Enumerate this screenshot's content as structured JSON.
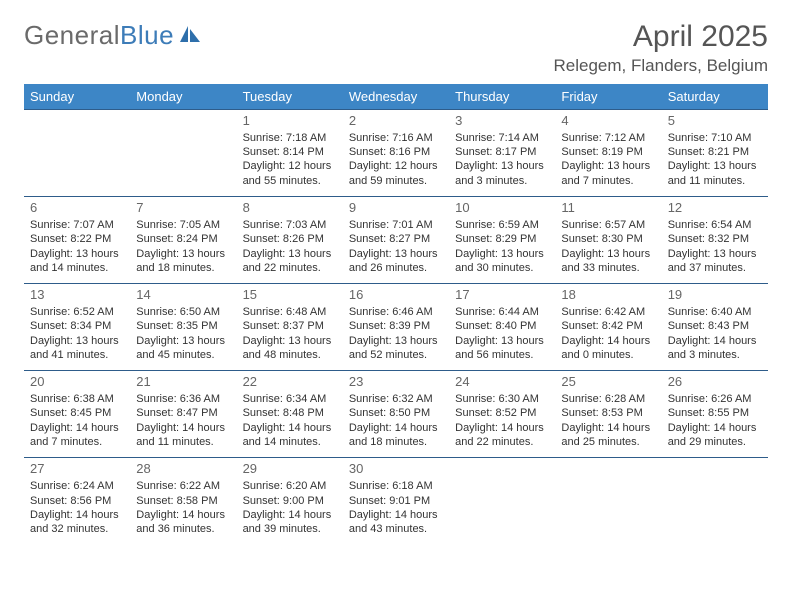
{
  "brand": {
    "part1": "General",
    "part2": "Blue"
  },
  "title": "April 2025",
  "location": "Relegem, Flanders, Belgium",
  "colors": {
    "header_bg": "#3d86c6",
    "header_text": "#ffffff",
    "row_border": "#2e5c8a",
    "text": "#333333",
    "title_text": "#555555",
    "logo_gray": "#6a6a6a",
    "logo_blue": "#3d7cb8",
    "background": "#ffffff"
  },
  "weekdays": [
    "Sunday",
    "Monday",
    "Tuesday",
    "Wednesday",
    "Thursday",
    "Friday",
    "Saturday"
  ],
  "weeks": [
    [
      null,
      null,
      {
        "n": "1",
        "sr": "Sunrise: 7:18 AM",
        "ss": "Sunset: 8:14 PM",
        "d1": "Daylight: 12 hours",
        "d2": "and 55 minutes."
      },
      {
        "n": "2",
        "sr": "Sunrise: 7:16 AM",
        "ss": "Sunset: 8:16 PM",
        "d1": "Daylight: 12 hours",
        "d2": "and 59 minutes."
      },
      {
        "n": "3",
        "sr": "Sunrise: 7:14 AM",
        "ss": "Sunset: 8:17 PM",
        "d1": "Daylight: 13 hours",
        "d2": "and 3 minutes."
      },
      {
        "n": "4",
        "sr": "Sunrise: 7:12 AM",
        "ss": "Sunset: 8:19 PM",
        "d1": "Daylight: 13 hours",
        "d2": "and 7 minutes."
      },
      {
        "n": "5",
        "sr": "Sunrise: 7:10 AM",
        "ss": "Sunset: 8:21 PM",
        "d1": "Daylight: 13 hours",
        "d2": "and 11 minutes."
      }
    ],
    [
      {
        "n": "6",
        "sr": "Sunrise: 7:07 AM",
        "ss": "Sunset: 8:22 PM",
        "d1": "Daylight: 13 hours",
        "d2": "and 14 minutes."
      },
      {
        "n": "7",
        "sr": "Sunrise: 7:05 AM",
        "ss": "Sunset: 8:24 PM",
        "d1": "Daylight: 13 hours",
        "d2": "and 18 minutes."
      },
      {
        "n": "8",
        "sr": "Sunrise: 7:03 AM",
        "ss": "Sunset: 8:26 PM",
        "d1": "Daylight: 13 hours",
        "d2": "and 22 minutes."
      },
      {
        "n": "9",
        "sr": "Sunrise: 7:01 AM",
        "ss": "Sunset: 8:27 PM",
        "d1": "Daylight: 13 hours",
        "d2": "and 26 minutes."
      },
      {
        "n": "10",
        "sr": "Sunrise: 6:59 AM",
        "ss": "Sunset: 8:29 PM",
        "d1": "Daylight: 13 hours",
        "d2": "and 30 minutes."
      },
      {
        "n": "11",
        "sr": "Sunrise: 6:57 AM",
        "ss": "Sunset: 8:30 PM",
        "d1": "Daylight: 13 hours",
        "d2": "and 33 minutes."
      },
      {
        "n": "12",
        "sr": "Sunrise: 6:54 AM",
        "ss": "Sunset: 8:32 PM",
        "d1": "Daylight: 13 hours",
        "d2": "and 37 minutes."
      }
    ],
    [
      {
        "n": "13",
        "sr": "Sunrise: 6:52 AM",
        "ss": "Sunset: 8:34 PM",
        "d1": "Daylight: 13 hours",
        "d2": "and 41 minutes."
      },
      {
        "n": "14",
        "sr": "Sunrise: 6:50 AM",
        "ss": "Sunset: 8:35 PM",
        "d1": "Daylight: 13 hours",
        "d2": "and 45 minutes."
      },
      {
        "n": "15",
        "sr": "Sunrise: 6:48 AM",
        "ss": "Sunset: 8:37 PM",
        "d1": "Daylight: 13 hours",
        "d2": "and 48 minutes."
      },
      {
        "n": "16",
        "sr": "Sunrise: 6:46 AM",
        "ss": "Sunset: 8:39 PM",
        "d1": "Daylight: 13 hours",
        "d2": "and 52 minutes."
      },
      {
        "n": "17",
        "sr": "Sunrise: 6:44 AM",
        "ss": "Sunset: 8:40 PM",
        "d1": "Daylight: 13 hours",
        "d2": "and 56 minutes."
      },
      {
        "n": "18",
        "sr": "Sunrise: 6:42 AM",
        "ss": "Sunset: 8:42 PM",
        "d1": "Daylight: 14 hours",
        "d2": "and 0 minutes."
      },
      {
        "n": "19",
        "sr": "Sunrise: 6:40 AM",
        "ss": "Sunset: 8:43 PM",
        "d1": "Daylight: 14 hours",
        "d2": "and 3 minutes."
      }
    ],
    [
      {
        "n": "20",
        "sr": "Sunrise: 6:38 AM",
        "ss": "Sunset: 8:45 PM",
        "d1": "Daylight: 14 hours",
        "d2": "and 7 minutes."
      },
      {
        "n": "21",
        "sr": "Sunrise: 6:36 AM",
        "ss": "Sunset: 8:47 PM",
        "d1": "Daylight: 14 hours",
        "d2": "and 11 minutes."
      },
      {
        "n": "22",
        "sr": "Sunrise: 6:34 AM",
        "ss": "Sunset: 8:48 PM",
        "d1": "Daylight: 14 hours",
        "d2": "and 14 minutes."
      },
      {
        "n": "23",
        "sr": "Sunrise: 6:32 AM",
        "ss": "Sunset: 8:50 PM",
        "d1": "Daylight: 14 hours",
        "d2": "and 18 minutes."
      },
      {
        "n": "24",
        "sr": "Sunrise: 6:30 AM",
        "ss": "Sunset: 8:52 PM",
        "d1": "Daylight: 14 hours",
        "d2": "and 22 minutes."
      },
      {
        "n": "25",
        "sr": "Sunrise: 6:28 AM",
        "ss": "Sunset: 8:53 PM",
        "d1": "Daylight: 14 hours",
        "d2": "and 25 minutes."
      },
      {
        "n": "26",
        "sr": "Sunrise: 6:26 AM",
        "ss": "Sunset: 8:55 PM",
        "d1": "Daylight: 14 hours",
        "d2": "and 29 minutes."
      }
    ],
    [
      {
        "n": "27",
        "sr": "Sunrise: 6:24 AM",
        "ss": "Sunset: 8:56 PM",
        "d1": "Daylight: 14 hours",
        "d2": "and 32 minutes."
      },
      {
        "n": "28",
        "sr": "Sunrise: 6:22 AM",
        "ss": "Sunset: 8:58 PM",
        "d1": "Daylight: 14 hours",
        "d2": "and 36 minutes."
      },
      {
        "n": "29",
        "sr": "Sunrise: 6:20 AM",
        "ss": "Sunset: 9:00 PM",
        "d1": "Daylight: 14 hours",
        "d2": "and 39 minutes."
      },
      {
        "n": "30",
        "sr": "Sunrise: 6:18 AM",
        "ss": "Sunset: 9:01 PM",
        "d1": "Daylight: 14 hours",
        "d2": "and 43 minutes."
      },
      null,
      null,
      null
    ]
  ]
}
